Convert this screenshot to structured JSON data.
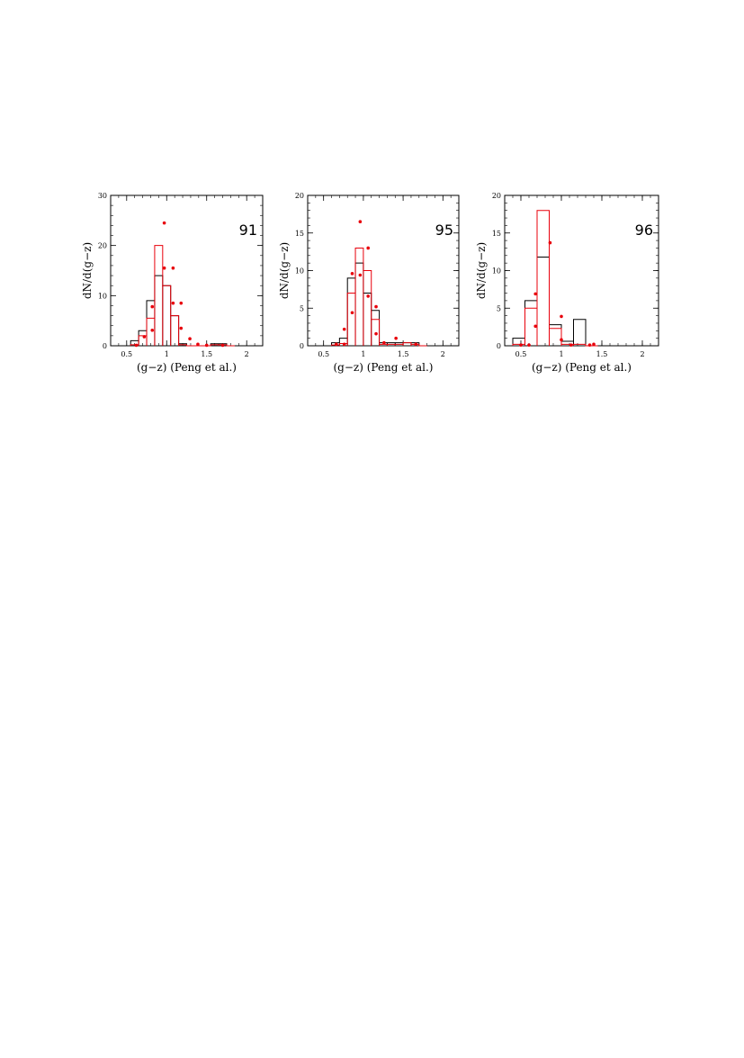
{
  "chart_data": [
    {
      "type": "bar",
      "panel_label": "91",
      "xlabel": "(g−z) (Peng et al.)",
      "ylabel": "dN/d(g−z)",
      "xlim": [
        0.3,
        2.2
      ],
      "ylim": [
        0,
        30
      ],
      "xticks": [
        0.5,
        1,
        1.5,
        2
      ],
      "xtick_labels": [
        "0.5",
        "1",
        "1.5",
        "2"
      ],
      "yticks": [
        0,
        10,
        20,
        30
      ],
      "ytick_labels": [
        "0",
        "10",
        "20",
        "30"
      ],
      "bin_edges": [
        0.55,
        0.65,
        0.75,
        0.85,
        0.95,
        1.05,
        1.15,
        1.25,
        1.35,
        1.45,
        1.55,
        1.65,
        1.75,
        1.85
      ],
      "series": [
        {
          "color": "#000000",
          "style": "histogram",
          "values": [
            1,
            3,
            9,
            14,
            12,
            6,
            0.4,
            0,
            0,
            0,
            0.4,
            0.4,
            0
          ]
        },
        {
          "color": "#e8000b",
          "style": "histogram",
          "values": [
            0.2,
            2,
            5.5,
            20,
            12,
            6,
            0.2,
            0,
            0,
            0,
            0.2,
            0.2,
            0
          ]
        },
        {
          "color": "#e8000b",
          "style": "points",
          "points": [
            [
              0.62,
              0.1
            ],
            [
              0.72,
              1.8
            ],
            [
              0.82,
              3.1
            ],
            [
              0.82,
              7.8
            ],
            [
              0.97,
              15.5
            ],
            [
              0.97,
              24.5
            ],
            [
              1.08,
              8.5
            ],
            [
              1.08,
              15.5
            ],
            [
              1.18,
              3.5
            ],
            [
              1.18,
              8.5
            ],
            [
              1.29,
              1.4
            ],
            [
              1.39,
              0.3
            ],
            [
              1.5,
              0.1
            ],
            [
              1.7,
              0.1
            ]
          ]
        }
      ]
    },
    {
      "type": "bar",
      "panel_label": "95",
      "xlabel": "(g−z) (Peng et al.)",
      "ylabel": "dN/d(g−z)",
      "xlim": [
        0.3,
        2.2
      ],
      "ylim": [
        0,
        20
      ],
      "xticks": [
        0.5,
        1,
        1.5,
        2
      ],
      "xtick_labels": [
        "0.5",
        "1",
        "1.5",
        "2"
      ],
      "yticks": [
        0,
        5,
        10,
        15,
        20
      ],
      "ytick_labels": [
        "0",
        "5",
        "10",
        "15",
        "20"
      ],
      "bin_edges": [
        0.6,
        0.7,
        0.8,
        0.9,
        1.0,
        1.1,
        1.2,
        1.3,
        1.4,
        1.5,
        1.6,
        1.7,
        1.8
      ],
      "series": [
        {
          "color": "#000000",
          "style": "histogram",
          "values": [
            0.4,
            1,
            9,
            11,
            7,
            4.7,
            0.4,
            0.4,
            0.4,
            0.4,
            0.4,
            0
          ]
        },
        {
          "color": "#e8000b",
          "style": "histogram",
          "values": [
            0.1,
            0.3,
            7,
            13,
            10,
            3.5,
            0.2,
            0.2,
            0.2,
            0.4,
            0.2,
            0
          ]
        },
        {
          "color": "#e8000b",
          "style": "points",
          "points": [
            [
              0.66,
              0.2
            ],
            [
              0.76,
              0.2
            ],
            [
              0.76,
              2.2
            ],
            [
              0.86,
              4.4
            ],
            [
              0.86,
              9.6
            ],
            [
              0.96,
              9.4
            ],
            [
              0.96,
              16.5
            ],
            [
              1.06,
              6.6
            ],
            [
              1.06,
              13
            ],
            [
              1.16,
              1.6
            ],
            [
              1.16,
              5.2
            ],
            [
              1.26,
              0.4
            ],
            [
              1.41,
              1
            ],
            [
              1.66,
              0.2
            ]
          ]
        }
      ]
    },
    {
      "type": "bar",
      "panel_label": "96",
      "xlabel": "(g−z) (Peng et al.)",
      "ylabel": "dN/d(g−z)",
      "xlim": [
        0.3,
        2.2
      ],
      "ylim": [
        0,
        20
      ],
      "xticks": [
        0.5,
        1,
        1.5,
        2
      ],
      "xtick_labels": [
        "0.5",
        "1",
        "1.5",
        "2"
      ],
      "yticks": [
        0,
        5,
        10,
        15,
        20
      ],
      "ytick_labels": [
        "0",
        "5",
        "10",
        "15",
        "20"
      ],
      "bin_edges": [
        0.4,
        0.55,
        0.7,
        0.85,
        1.0,
        1.15,
        1.3,
        1.45
      ],
      "series": [
        {
          "color": "#000000",
          "style": "histogram",
          "values": [
            1,
            6,
            11.8,
            2.8,
            0.6,
            3.5,
            0
          ]
        },
        {
          "color": "#e8000b",
          "style": "histogram",
          "values": [
            0.2,
            5,
            18,
            2.3,
            0.2,
            0.2,
            0
          ]
        },
        {
          "color": "#e8000b",
          "style": "points",
          "points": [
            [
              0.5,
              0.1
            ],
            [
              0.6,
              0.1
            ],
            [
              0.68,
              2.6
            ],
            [
              0.68,
              6.9
            ],
            [
              0.86,
              13.7
            ],
            [
              1.0,
              0.8
            ],
            [
              1.0,
              3.9
            ],
            [
              1.12,
              0.1
            ],
            [
              1.35,
              0.1
            ],
            [
              1.4,
              0.2
            ]
          ]
        }
      ]
    }
  ]
}
